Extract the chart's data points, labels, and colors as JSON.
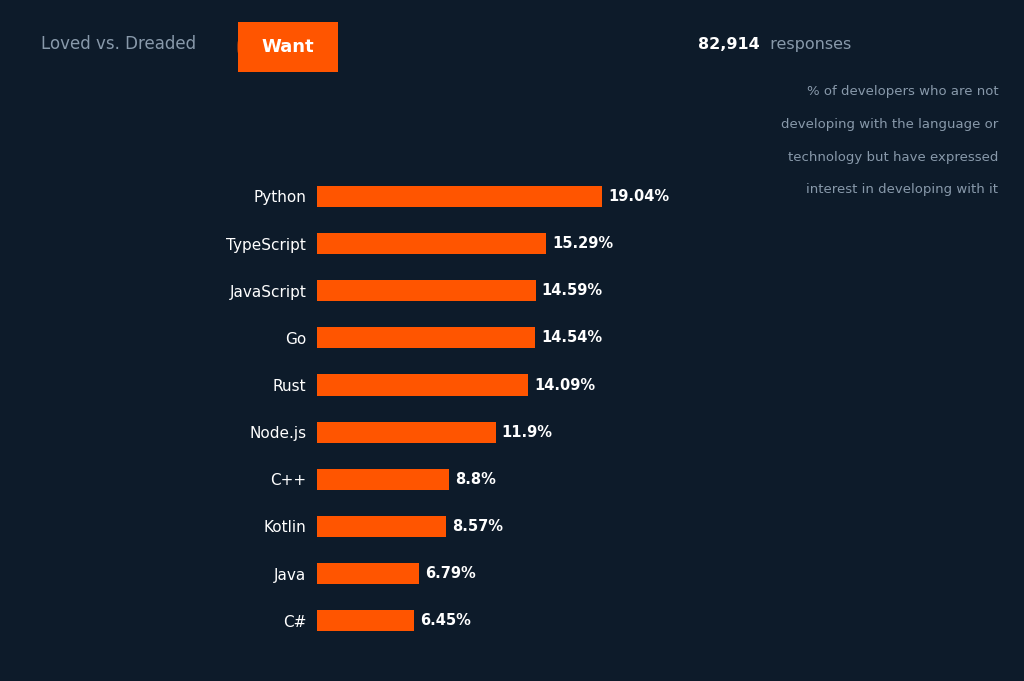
{
  "background_color": "#0d1b2a",
  "bar_color": "#ff5500",
  "text_color": "#ffffff",
  "subtitle_color": "#8899aa",
  "categories": [
    "Python",
    "TypeScript",
    "JavaScript",
    "Go",
    "Rust",
    "Node.js",
    "C++",
    "Kotlin",
    "Java",
    "C#"
  ],
  "values": [
    19.04,
    15.29,
    14.59,
    14.54,
    14.09,
    11.9,
    8.8,
    8.57,
    6.79,
    6.45
  ],
  "labels": [
    "19.04%",
    "15.29%",
    "14.59%",
    "14.54%",
    "14.09%",
    "11.9%",
    "8.8%",
    "8.57%",
    "6.79%",
    "6.45%"
  ],
  "header_left": "Loved vs. Dreaded",
  "button_text": "Want",
  "button_color": "#ff5500",
  "responses_bold": "82,914",
  "responses_normal": " responses",
  "subtitle_lines": [
    "% of developers who are not",
    "developing with the language or",
    "technology but have expressed",
    "interest in developing with it"
  ],
  "figsize": [
    10.24,
    6.81
  ],
  "dpi": 100,
  "xlim": [
    0,
    26
  ],
  "bar_height": 0.45
}
